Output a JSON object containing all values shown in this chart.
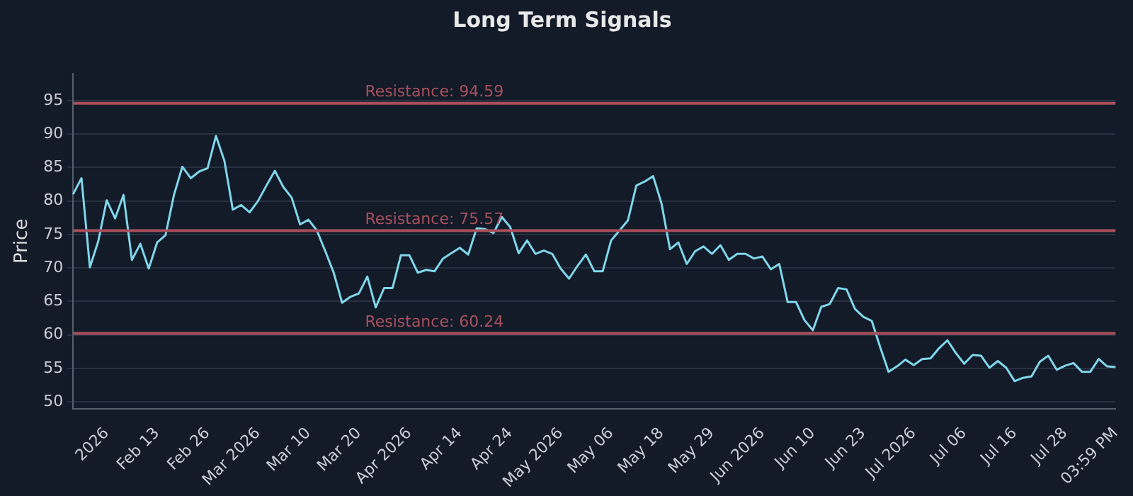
{
  "chart_data": {
    "type": "line",
    "title": "Long Term Signals",
    "ylabel": "Price",
    "categories": [
      null,
      null,
      null,
      null,
      "2026",
      null,
      null,
      null,
      null,
      null,
      "Feb 13",
      null,
      null,
      null,
      null,
      null,
      "Feb 26",
      null,
      null,
      null,
      null,
      null,
      "Mar 2026",
      null,
      null,
      null,
      null,
      null,
      "Mar 10",
      null,
      null,
      null,
      null,
      null,
      "Mar 20",
      null,
      null,
      null,
      null,
      null,
      "Apr 2026",
      null,
      null,
      null,
      null,
      null,
      "Apr 14",
      null,
      null,
      null,
      null,
      null,
      "Apr 24",
      null,
      null,
      null,
      null,
      null,
      "May 2026",
      null,
      null,
      null,
      null,
      null,
      "May 06",
      null,
      null,
      null,
      null,
      null,
      "May 18",
      null,
      null,
      null,
      null,
      null,
      "May 29",
      null,
      null,
      null,
      null,
      null,
      "Jun 2026",
      null,
      null,
      null,
      null,
      null,
      "Jun 10",
      null,
      null,
      null,
      null,
      null,
      "Jun 23",
      null,
      null,
      null,
      null,
      null,
      "Jul 2026",
      null,
      null,
      null,
      null,
      null,
      "Jul 06",
      null,
      null,
      null,
      null,
      null,
      "Jul 16",
      null,
      null,
      null,
      null,
      null,
      "Jul 28",
      null,
      null,
      null,
      null,
      null,
      "03:59 PM"
    ],
    "series": [
      {
        "color": "#7fd6ea",
        "values": [
          81.0,
          83.4,
          70.1,
          74.0,
          80.1,
          77.4,
          80.9,
          71.2,
          73.6,
          69.9,
          73.8,
          74.9,
          80.9,
          85.1,
          83.4,
          84.4,
          84.9,
          89.7,
          86.0,
          78.7,
          79.4,
          78.3,
          80.0,
          82.3,
          84.5,
          82.1,
          80.5,
          76.5,
          77.2,
          75.6,
          72.5,
          69.3,
          64.8,
          65.7,
          66.2,
          68.7,
          64.1,
          67.0,
          67.0,
          71.9,
          71.9,
          69.3,
          69.7,
          69.5,
          71.4,
          72.2,
          73.0,
          72.0,
          75.9,
          75.8,
          75.2,
          77.6,
          76.1,
          72.2,
          74.1,
          72.1,
          72.6,
          72.1,
          69.9,
          68.4,
          70.3,
          72.0,
          69.5,
          69.5,
          74.1,
          75.6,
          77.1,
          82.3,
          82.9,
          83.7,
          79.6,
          72.8,
          73.8,
          70.6,
          72.5,
          73.2,
          72.1,
          73.4,
          71.2,
          72.1,
          72.1,
          71.4,
          71.7,
          69.8,
          70.6,
          64.9,
          64.9,
          62.2,
          60.7,
          64.2,
          64.6,
          67.0,
          66.8,
          63.9,
          62.7,
          62.1,
          58.2,
          54.5,
          55.3,
          56.3,
          55.5,
          56.4,
          56.5,
          58.0,
          59.2,
          57.3,
          55.7,
          57.0,
          56.9,
          55.1,
          56.1,
          55.1,
          53.1,
          53.6,
          53.8,
          56.0,
          56.9,
          54.8,
          55.4,
          55.8,
          54.5,
          54.5,
          56.4,
          55.3,
          55.2
        ]
      }
    ],
    "ylim": [
      49,
      99
    ],
    "yticks": [
      50,
      55,
      60,
      65,
      70,
      75,
      80,
      85,
      90,
      95
    ],
    "grid": "y",
    "legend": false,
    "marker": "none",
    "line_style": "solid",
    "ref_lines": [
      {
        "axis": "y",
        "value": 94.59,
        "label": "Resistance: 94.59",
        "color": "#a8505c"
      },
      {
        "axis": "y",
        "value": 75.57,
        "label": "Resistance: 75.57",
        "color": "#a8505c"
      },
      {
        "axis": "y",
        "value": 60.24,
        "label": "Resistance: 60.24",
        "color": "#a8505c"
      }
    ]
  }
}
